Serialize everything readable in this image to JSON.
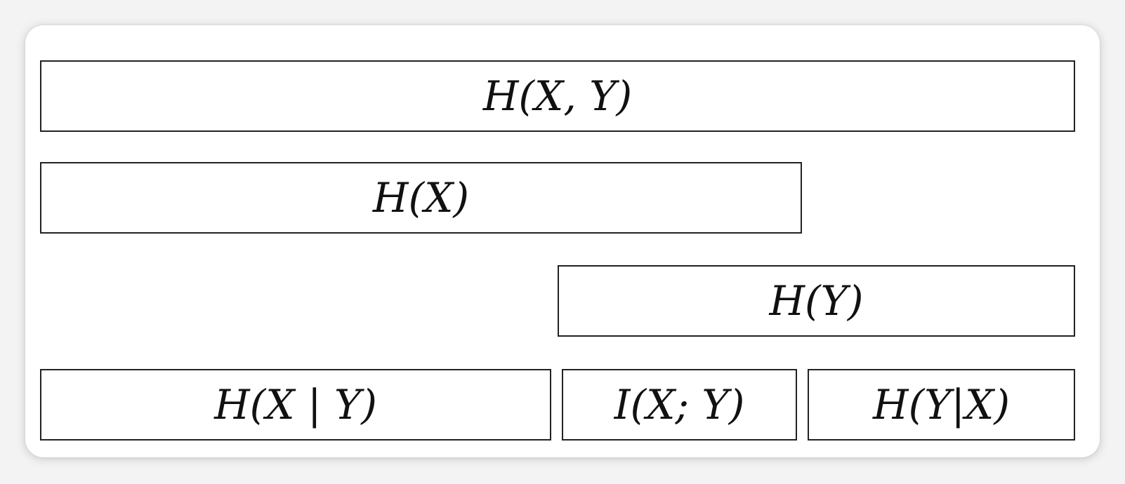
{
  "diagram": {
    "boxes": {
      "joint_entropy": "H(X, Y)",
      "entropy_x": "H(X)",
      "entropy_y": "H(Y)",
      "conditional_x_given_y": "H(X | Y)",
      "mutual_information": "I(X; Y)",
      "conditional_y_given_x": "H(Y|X)"
    }
  }
}
